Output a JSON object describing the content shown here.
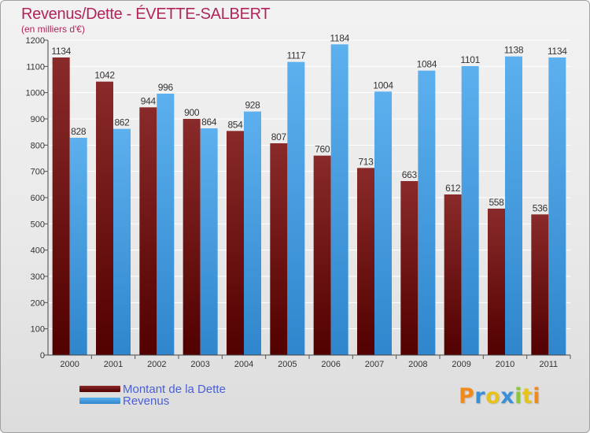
{
  "header": {
    "title": "Revenus/Dette - ÉVETTE-SALBERT",
    "subtitle": "(en milliers d'€)"
  },
  "logo": {
    "text": "Proxiti"
  },
  "colors": {
    "dette": "#7a1c1c",
    "revenus": "#4ba3e3",
    "title": "#b0245c",
    "legend_text": "#4a5fd6"
  },
  "chart_data": {
    "type": "bar",
    "title": "Revenus/Dette - ÉVETTE-SALBERT",
    "subtitle": "(en milliers d'€)",
    "xlabel": "",
    "ylabel": "",
    "categories": [
      "2000",
      "2001",
      "2002",
      "2003",
      "2004",
      "2005",
      "2006",
      "2007",
      "2008",
      "2009",
      "2010",
      "2011"
    ],
    "series": [
      {
        "name": "Montant de la Dette",
        "values": [
          1134,
          1042,
          944,
          900,
          854,
          807,
          760,
          713,
          663,
          612,
          558,
          536
        ]
      },
      {
        "name": "Revenus",
        "values": [
          828,
          862,
          996,
          864,
          928,
          1117,
          1184,
          1004,
          1084,
          1101,
          1138,
          1134
        ]
      }
    ],
    "ylim": [
      0,
      1200
    ],
    "yticks": [
      0,
      100,
      200,
      300,
      400,
      500,
      600,
      700,
      800,
      900,
      1000,
      1100,
      1200
    ],
    "grid": true,
    "legend": "bottom-left"
  }
}
